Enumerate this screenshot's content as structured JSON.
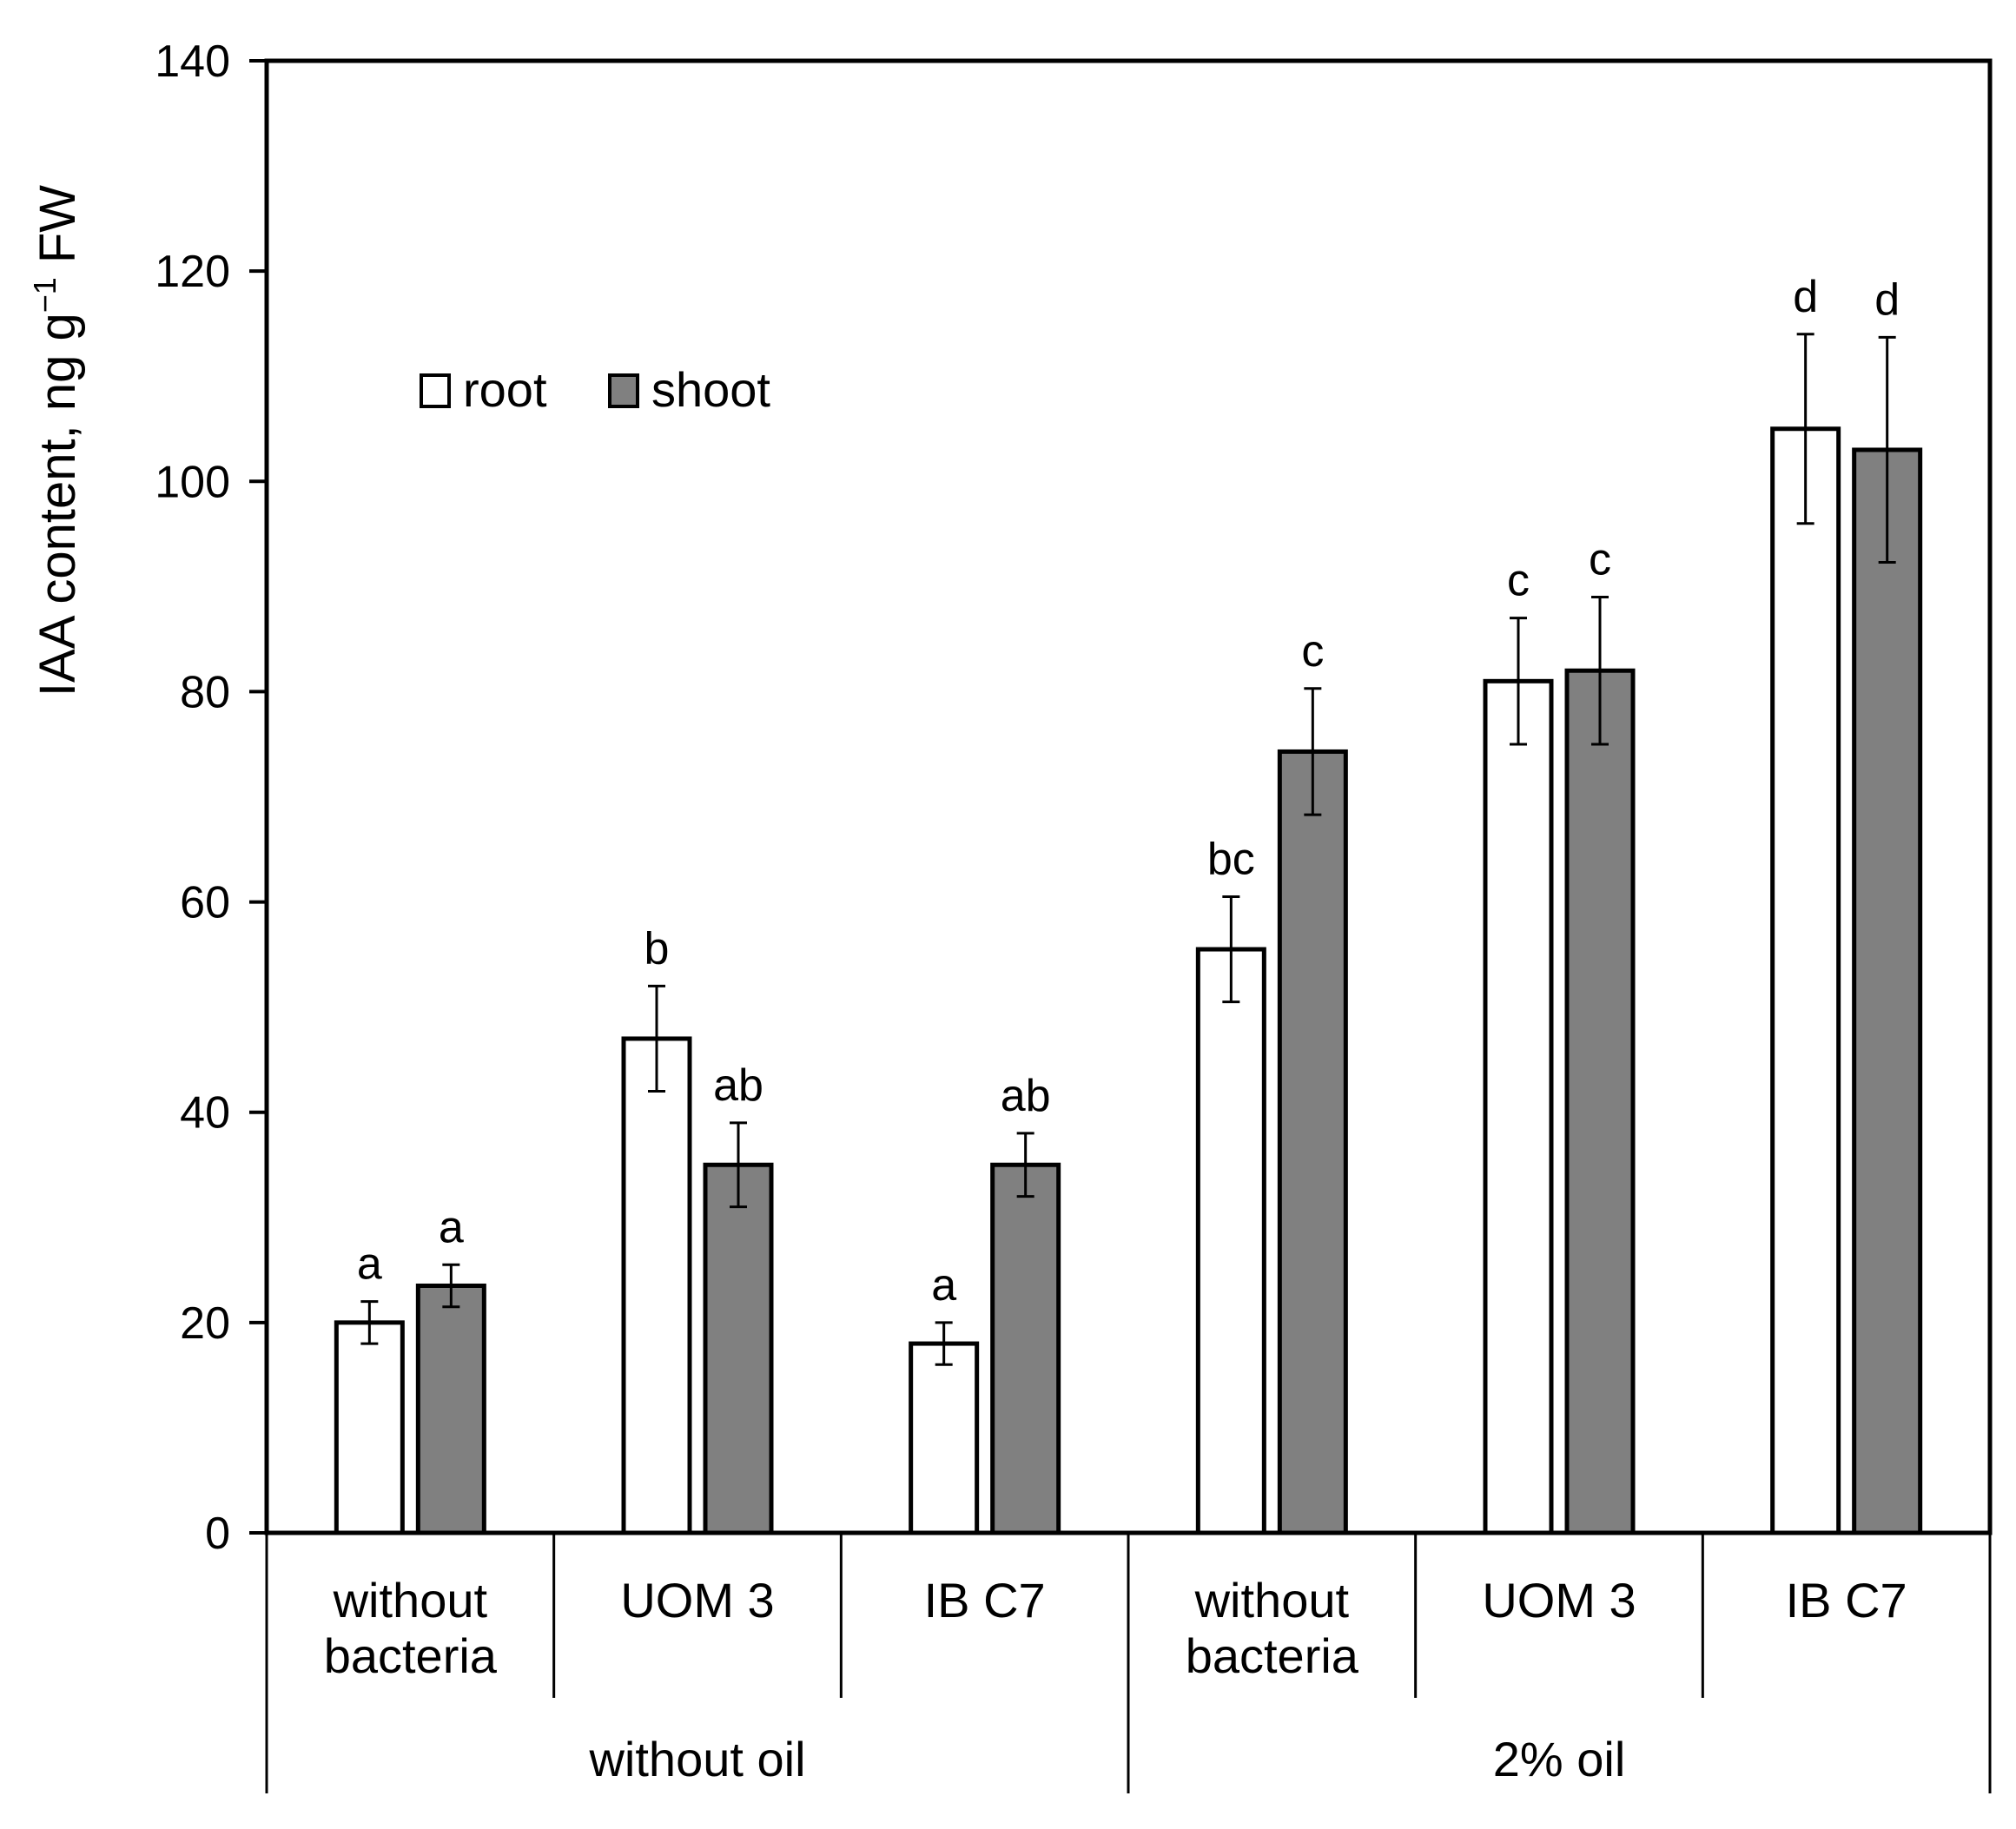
{
  "chart_data": {
    "type": "bar",
    "title": "",
    "ylabel": "IAA content, ng g",
    "ylabel_superscript": "−1",
    "ylabel_suffix": " FW",
    "xlabel": "",
    "ylim": [
      0,
      140
    ],
    "yticks": [
      0,
      20,
      40,
      60,
      80,
      100,
      120,
      140
    ],
    "grid": false,
    "legend_position": "top-left",
    "categories": [
      "without bacteria",
      "UOM 3",
      "IB C7",
      "without bacteria",
      "UOM 3",
      "IB C7"
    ],
    "category_lines": [
      [
        "without",
        "bacteria"
      ],
      [
        "UOM 3"
      ],
      [
        "IB C7"
      ],
      [
        "without",
        "bacteria"
      ],
      [
        "UOM 3"
      ],
      [
        "IB C7"
      ]
    ],
    "groups": [
      {
        "label": "without oil",
        "categories": [
          0,
          1,
          2
        ]
      },
      {
        "label": "2% oil",
        "categories": [
          3,
          4,
          5
        ]
      }
    ],
    "series": [
      {
        "name": "root",
        "color": "#ffffff",
        "values": [
          20,
          47,
          18,
          55.5,
          81,
          105
        ],
        "errors": [
          2,
          5,
          2,
          5,
          6,
          9
        ],
        "letters": [
          "a",
          "b",
          "a",
          "bc",
          "c",
          "d"
        ]
      },
      {
        "name": "shoot",
        "color": "#808080",
        "values": [
          23.5,
          35,
          35,
          74.3,
          82,
          103
        ],
        "errors": [
          2,
          4,
          3,
          6,
          7,
          10.7
        ],
        "letters": [
          "a",
          "ab",
          "ab",
          "c",
          "c",
          "d"
        ]
      }
    ]
  }
}
